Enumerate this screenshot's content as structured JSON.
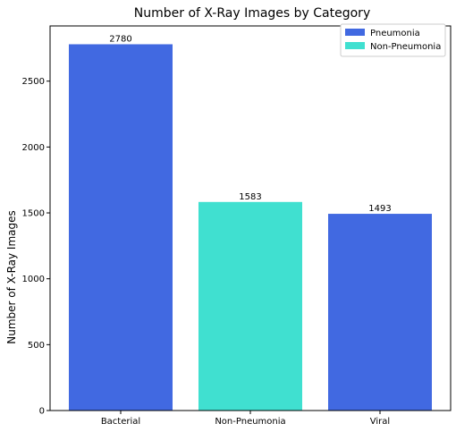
{
  "chart_data": {
    "type": "bar",
    "title": "Number of X-Ray Images by Category",
    "xlabel": "",
    "ylabel": "Number of X-Ray Images",
    "categories": [
      "Bacterial",
      "Non-Pneumonia",
      "Viral"
    ],
    "values": [
      2780,
      1583,
      1493
    ],
    "bar_groups": [
      "Pneumonia",
      "Non-Pneumonia",
      "Pneumonia"
    ],
    "data_labels": [
      "2780",
      "1583",
      "1493"
    ],
    "ylim": [
      0,
      2919
    ],
    "yticks": [
      0,
      500,
      1000,
      1500,
      2000,
      2500
    ],
    "ytick_labels": [
      "0",
      "500",
      "1000",
      "1500",
      "2000",
      "2500"
    ],
    "grid": false,
    "legend": {
      "placement": "top-right",
      "entries": [
        {
          "name": "Pneumonia",
          "color": "#4169e1"
        },
        {
          "name": "Non-Pneumonia",
          "color": "#40e0d0"
        }
      ]
    },
    "colors": {
      "Pneumonia": "#4169e1",
      "Non-Pneumonia": "#40e0d0"
    }
  }
}
